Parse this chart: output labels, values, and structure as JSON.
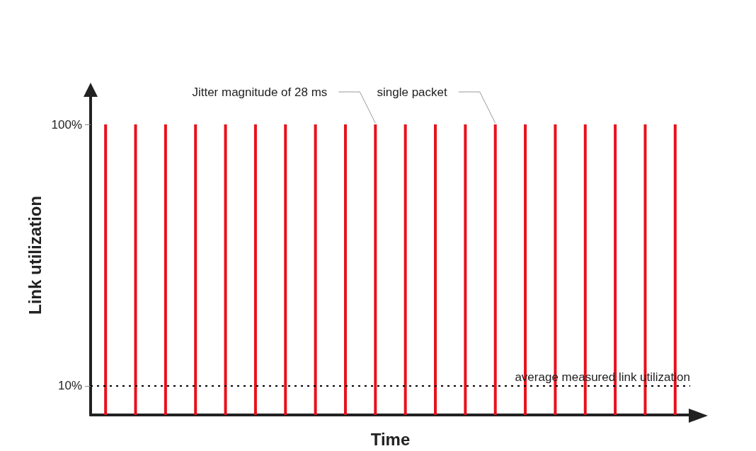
{
  "chart_data": {
    "type": "bar",
    "xlabel": "Time",
    "ylabel": "Link utilization",
    "categories": [
      null,
      null,
      null,
      null,
      null,
      null,
      null,
      null,
      null,
      null,
      null,
      null,
      null,
      null,
      null,
      null,
      null,
      null,
      null,
      null
    ],
    "values": [
      100,
      100,
      100,
      100,
      100,
      100,
      100,
      100,
      100,
      100,
      100,
      100,
      100,
      100,
      100,
      100,
      100,
      100,
      100,
      100
    ],
    "color": "#e8101a",
    "ylim": [
      0,
      110
    ],
    "yticks": [
      {
        "value": 10,
        "label": "10%"
      },
      {
        "value": 100,
        "label": "100%"
      }
    ],
    "grid": false,
    "ref_lines": [
      {
        "axis": "y",
        "value": 10,
        "label": "average measured link utilization",
        "color": "#000000",
        "line_style": "dotted"
      }
    ],
    "annotations": [
      "Jitter magnitude of 28 ms",
      "single packet"
    ]
  }
}
